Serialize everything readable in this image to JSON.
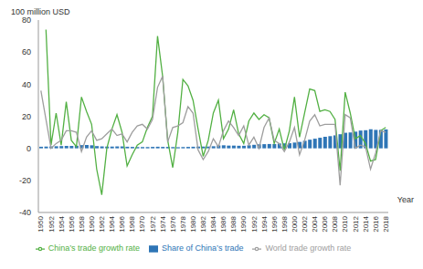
{
  "chart_data": {
    "type": "bar",
    "x_label": "Year",
    "y_label": "100 million USD",
    "legend": "bottom",
    "grid": false,
    "categories": [
      "1950",
      null,
      "1952",
      null,
      "1954",
      null,
      "1956",
      null,
      "1958",
      null,
      "1960",
      null,
      "1962",
      null,
      "1964",
      null,
      "1966",
      null,
      "1968",
      null,
      "1970",
      null,
      "1972",
      null,
      "1974",
      null,
      "1976",
      null,
      "1978",
      null,
      "1980",
      null,
      "1982",
      null,
      "1984",
      null,
      "1986",
      null,
      "1988",
      null,
      "1990",
      null,
      "1992",
      null,
      "1994",
      null,
      "1996",
      null,
      "1998",
      null,
      "2000",
      null,
      "2002",
      null,
      "2004",
      null,
      "2006",
      null,
      "2008",
      null,
      "2010",
      null,
      "2012",
      null,
      "2014",
      null,
      "2016",
      null,
      "2018"
    ],
    "ylim": [
      -40,
      80
    ],
    "yticks": [
      -40,
      -20,
      0,
      20,
      40,
      60,
      80
    ],
    "series": [
      {
        "name": "Share of China’s trade",
        "type": "bar",
        "color": "#2e75b6",
        "values": [
          1.0,
          1.1,
          1.2,
          1.3,
          1.4,
          1.5,
          1.5,
          1.6,
          2.0,
          2.1,
          1.9,
          1.4,
          1.2,
          1.1,
          1.1,
          1.2,
          1.2,
          1.0,
          0.9,
          0.8,
          0.8,
          0.8,
          0.9,
          1.0,
          0.9,
          0.9,
          0.8,
          0.7,
          0.8,
          0.9,
          1.0,
          1.1,
          1.1,
          1.1,
          1.3,
          1.8,
          1.9,
          1.7,
          1.7,
          1.6,
          1.6,
          1.9,
          2.2,
          2.5,
          2.6,
          2.7,
          2.7,
          3.0,
          3.1,
          3.2,
          3.6,
          4.0,
          4.7,
          5.4,
          6.0,
          6.6,
          7.2,
          7.6,
          8.1,
          8.8,
          9.7,
          9.9,
          10.4,
          11.1,
          11.3,
          11.9,
          11.5,
          11.5,
          11.8
        ]
      },
      {
        "name": "China’s trade growth rate",
        "type": "line",
        "color": "#52b043",
        "values": [
          null,
          74,
          2,
          22,
          2,
          29,
          5,
          1,
          32,
          23,
          15,
          -13,
          -29,
          0,
          12,
          21,
          10,
          -11,
          -4,
          2,
          4,
          13,
          20,
          70,
          45,
          5,
          -12,
          10,
          43,
          39,
          30,
          12,
          -5,
          5,
          22,
          30,
          6,
          12,
          24,
          9,
          3,
          17,
          22,
          18,
          21,
          19,
          3,
          12,
          -1,
          11,
          32,
          7,
          22,
          37,
          36,
          23,
          24,
          23,
          18,
          -14,
          35,
          22,
          6,
          8,
          3,
          -8,
          -7,
          11,
          13
        ]
      },
      {
        "name": "World trade growth rate",
        "type": "line",
        "color": "#9e9e9e",
        "values": [
          36,
          18,
          0,
          3,
          5,
          11,
          11,
          10,
          -2,
          7,
          11,
          5,
          6,
          9,
          12,
          8,
          9,
          4,
          10,
          14,
          15,
          12,
          18,
          38,
          45,
          4,
          13,
          14,
          16,
          26,
          22,
          -1,
          -7,
          -2,
          6,
          1,
          11,
          17,
          13,
          8,
          14,
          2,
          7,
          0,
          13,
          19,
          5,
          3,
          -2,
          4,
          13,
          -4,
          5,
          17,
          21,
          14,
          15,
          15,
          15,
          -23,
          21,
          19,
          0,
          2,
          1,
          -13,
          -3,
          11,
          10
        ]
      }
    ]
  }
}
